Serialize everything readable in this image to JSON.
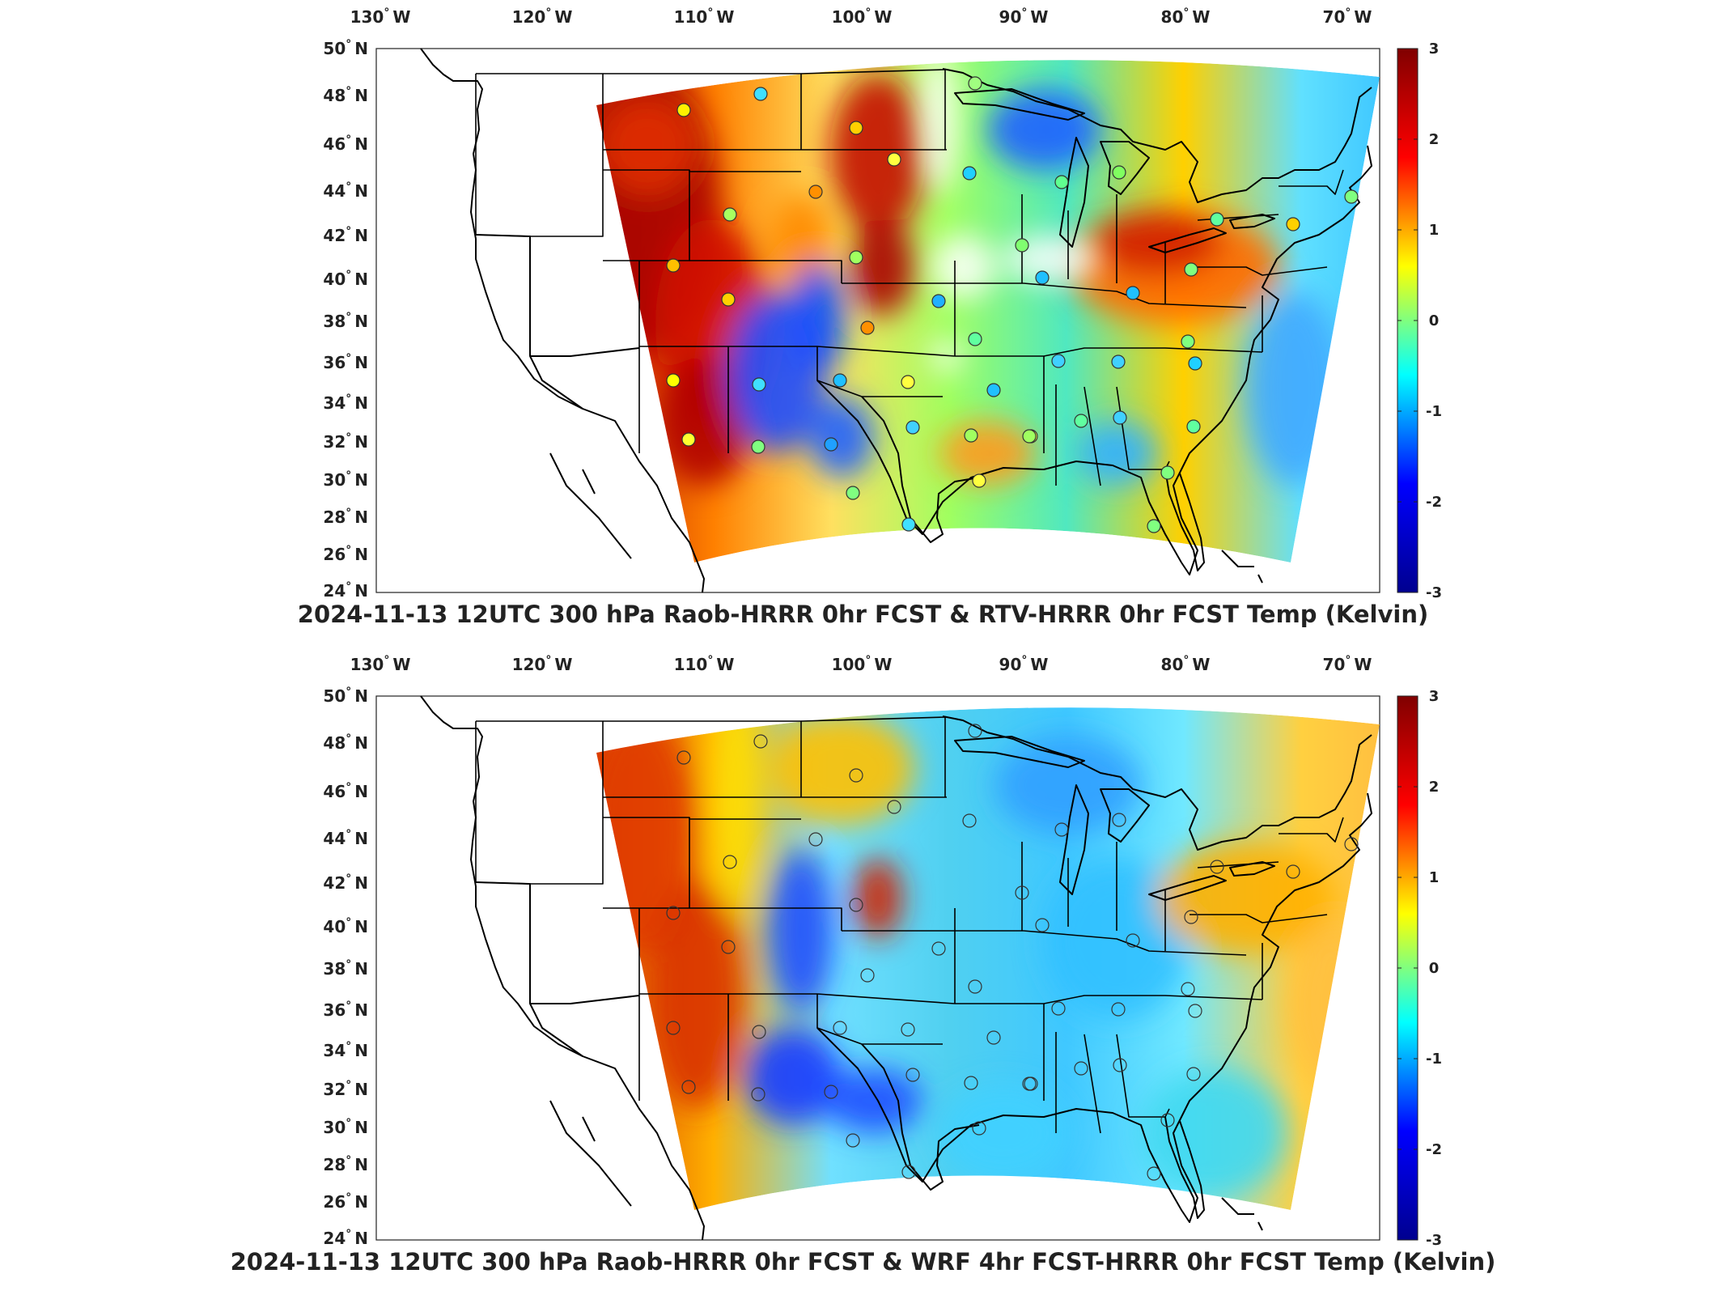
{
  "panels": [
    {
      "title": "2024-11-13 12UTC 300 hPa Raob-HRRR 0hr FCST & RTV-HRRR 0hr FCST Temp (Kelvin)",
      "field": "rtv"
    },
    {
      "title": "2024-11-13 12UTC 300 hPa Raob-HRRR 0hr FCST & WRF 4hr FCST-HRRR 0hr FCST Temp (Kelvin)",
      "field": "wrf"
    }
  ],
  "lon_labels": [
    "130",
    "120",
    "110",
    "100",
    "90",
    "80",
    "70"
  ],
  "lon_suffix": "W",
  "lat_labels": [
    "50",
    "48",
    "46",
    "44",
    "42",
    "40",
    "38",
    "36",
    "34",
    "32",
    "30",
    "28",
    "26",
    "24"
  ],
  "lat_suffix": "N",
  "degree_symbol": "°",
  "colorbar": {
    "ticks": [
      "3",
      "2",
      "1",
      "0",
      "-1",
      "-2",
      "-3"
    ],
    "min": -3,
    "max": 3,
    "colormap": "jet",
    "colors": [
      "#00008f",
      "#0000ff",
      "#00ffff",
      "#ffff00",
      "#ff0000",
      "#800000"
    ]
  },
  "land_outline_color": "#000000"
}
